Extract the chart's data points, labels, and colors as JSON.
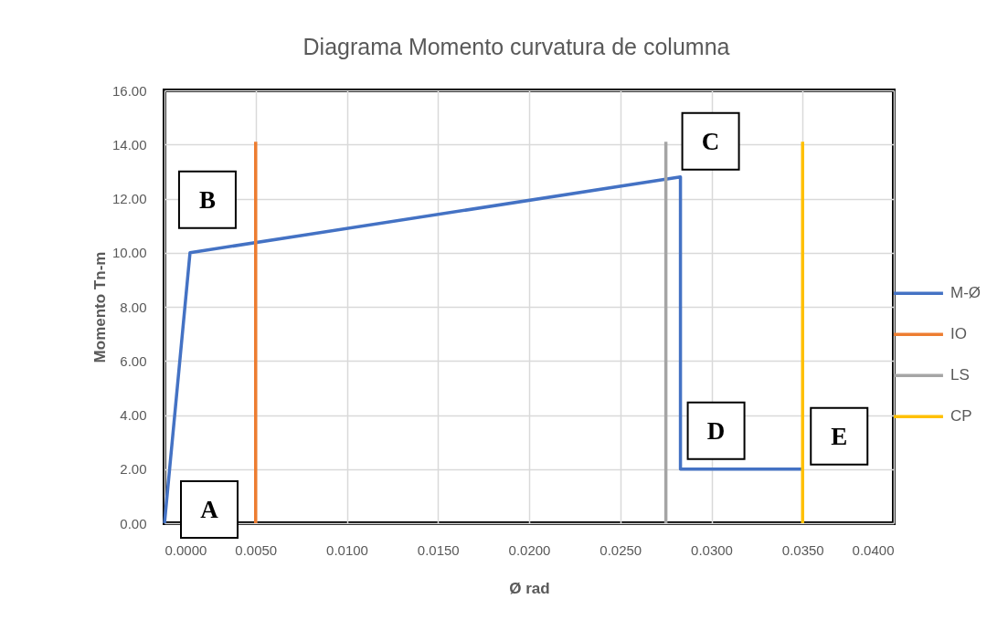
{
  "chart_data": {
    "type": "line",
    "title": "Diagrama Momento curvatura de columna",
    "xlabel": "Ø rad",
    "ylabel": "Momento Tn-m",
    "series": [
      {
        "name": "M-Ø",
        "color": "#4472c4",
        "x": [
          0,
          0.0014,
          0.0283,
          0.0283,
          0.035
        ],
        "values": [
          0,
          10.0,
          12.8,
          2.0,
          2.0
        ]
      },
      {
        "name": "IO",
        "color": "#ed7d31",
        "x": [
          0.005,
          0.005
        ],
        "values": [
          0,
          14.1
        ]
      },
      {
        "name": "LS",
        "color": "#a5a5a5",
        "x": [
          0.0275,
          0.0275
        ],
        "values": [
          0,
          14.1
        ]
      },
      {
        "name": "CP",
        "color": "#ffc000",
        "x": [
          0.035,
          0.035
        ],
        "values": [
          0,
          14.1
        ]
      }
    ],
    "xlim": [
      0,
      0.04
    ],
    "xticks": [
      {
        "value": 0,
        "label": "0.0000"
      },
      {
        "value": 0.005,
        "label": "0.0050"
      },
      {
        "value": 0.01,
        "label": "0.0100"
      },
      {
        "value": 0.015,
        "label": "0.0150"
      },
      {
        "value": 0.02,
        "label": "0.0200"
      },
      {
        "value": 0.025,
        "label": "0.0250"
      },
      {
        "value": 0.03,
        "label": "0.0300"
      },
      {
        "value": 0.035,
        "label": "0.0350"
      },
      {
        "value": 0.04,
        "label": "0.0400"
      }
    ],
    "ylim": [
      0,
      16
    ],
    "yticks": [
      {
        "value": 0,
        "label": "0.00"
      },
      {
        "value": 2,
        "label": "2.00"
      },
      {
        "value": 4,
        "label": "4.00"
      },
      {
        "value": 6,
        "label": "6.00"
      },
      {
        "value": 8,
        "label": "8.00"
      },
      {
        "value": 10,
        "label": "10.00"
      },
      {
        "value": 12,
        "label": "12.00"
      },
      {
        "value": 14,
        "label": "14.00"
      },
      {
        "value": 16,
        "label": "16.00"
      }
    ],
    "grid": true,
    "legend": "right",
    "annotations": [
      {
        "text": "A",
        "x": 0,
        "y": 0
      },
      {
        "text": "B",
        "x": 0.0014,
        "y": 10.0
      },
      {
        "text": "C",
        "x": 0.0283,
        "y": 12.8
      },
      {
        "text": "D",
        "x": 0.0283,
        "y": 2.0
      },
      {
        "text": "E",
        "x": 0.035,
        "y": 2.0
      }
    ]
  }
}
